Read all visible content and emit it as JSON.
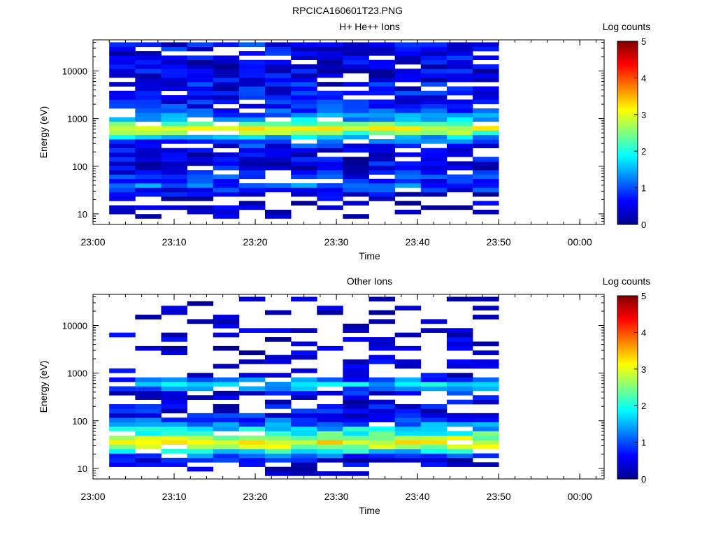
{
  "figure_title": "RPCICA160601T23.PNG",
  "chart_data": [
    {
      "type": "heatmap",
      "title": "H+ He++ Ions",
      "xlabel": "Time",
      "ylabel": "Energy (eV)",
      "x_ticks": [
        "23:00",
        "23:10",
        "23:20",
        "23:30",
        "23:40",
        "23:50",
        "00:00"
      ],
      "x_range": [
        "23:00",
        "00:03"
      ],
      "data_time_range": [
        "23:02",
        "23:50"
      ],
      "y_scale": "log",
      "y_ticks": [
        "10",
        "100",
        "1000",
        "10000"
      ],
      "y_range": [
        6,
        45000
      ],
      "colorbar": {
        "label": "Log counts",
        "min": 0,
        "max": 5,
        "ticks": [
          "0",
          "1",
          "2",
          "3",
          "4",
          "5"
        ]
      },
      "profile": {
        "energy_eV": [
          10,
          13,
          16,
          20,
          25,
          32,
          40,
          55,
          80,
          120,
          180,
          260,
          380,
          500,
          600,
          700,
          850,
          1000,
          1300,
          1800,
          2500,
          4000,
          6000,
          10000,
          16000,
          25000,
          40000
        ],
        "log_counts": [
          0.2,
          0.2,
          0.3,
          0.3,
          0.4,
          0.7,
          1.1,
          0.8,
          0.6,
          0.5,
          0.5,
          0.7,
          1.1,
          2.4,
          3.0,
          2.6,
          1.9,
          1.4,
          1.0,
          0.8,
          0.7,
          0.6,
          0.6,
          0.5,
          0.5,
          0.6,
          0.7
        ]
      }
    },
    {
      "type": "heatmap",
      "title": "Other Ions",
      "xlabel": "Time",
      "ylabel": "Energy (eV)",
      "x_ticks": [
        "23:00",
        "23:10",
        "23:20",
        "23:30",
        "23:40",
        "23:50",
        "00:00"
      ],
      "x_range": [
        "23:00",
        "00:03"
      ],
      "data_time_range": [
        "23:02",
        "23:50"
      ],
      "y_scale": "log",
      "y_ticks": [
        "10",
        "100",
        "1000",
        "10000"
      ],
      "y_range": [
        6,
        45000
      ],
      "colorbar": {
        "label": "Log counts",
        "min": 0,
        "max": 5,
        "ticks": [
          "0",
          "1",
          "2",
          "3",
          "4",
          "5"
        ]
      },
      "profile": {
        "energy_eV": [
          8,
          10,
          13,
          16,
          20,
          25,
          30,
          36,
          42,
          50,
          60,
          75,
          90,
          110,
          140,
          180,
          250,
          350,
          500,
          600,
          700,
          900,
          1300,
          2000,
          3000,
          5000,
          8000,
          12000,
          20000,
          30000
        ],
        "log_counts": [
          0.3,
          0.4,
          0.4,
          0.6,
          1.2,
          2.2,
          2.9,
          3.1,
          2.8,
          2.3,
          1.9,
          1.5,
          1.1,
          0.8,
          0.6,
          0.5,
          0.4,
          0.4,
          1.3,
          1.7,
          1.2,
          0.5,
          0.3,
          0.3,
          0.3,
          0.3,
          0.3,
          0.3,
          0.2,
          0.2
        ]
      }
    }
  ]
}
